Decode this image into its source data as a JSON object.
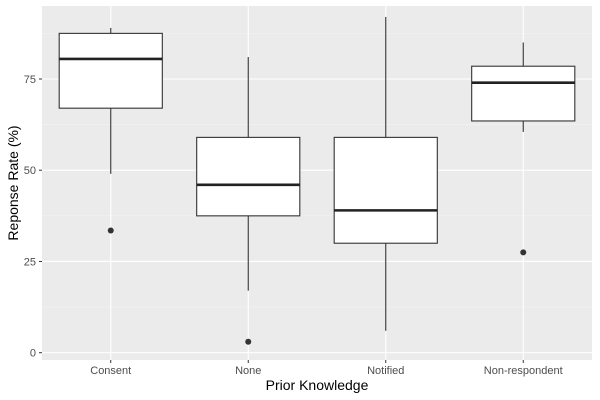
{
  "chart_data": {
    "type": "boxplot",
    "title": "",
    "xlabel": "Prior Knowledge",
    "ylabel": "Reponse Rate (%)",
    "ylim": [
      -2,
      95
    ],
    "yticks": [
      0,
      25,
      50,
      75
    ],
    "grid": true,
    "legend": "none",
    "colors": {
      "panel_bg": "#EBEBEB",
      "grid_major": "#FFFFFF",
      "grid_minor": "#F3F3F3",
      "box_fill": "#FFFFFF",
      "box_stroke": "#333333",
      "median": "#222222",
      "outlier": "#333333",
      "tick_text": "#4D4D4D",
      "axis_title": "#000000"
    },
    "categories": [
      "Consent",
      "None",
      "Notified",
      "Non-respondent"
    ],
    "boxes": [
      {
        "category": "Consent",
        "lower_whisker": 49,
        "q1": 67,
        "median": 80.5,
        "q3": 87.5,
        "upper_whisker": 89,
        "outliers": [
          33.5
        ]
      },
      {
        "category": "None",
        "lower_whisker": 17,
        "q1": 37.5,
        "median": 46,
        "q3": 59,
        "upper_whisker": 81,
        "outliers": [
          3
        ]
      },
      {
        "category": "Notified",
        "lower_whisker": 6,
        "q1": 30,
        "median": 39,
        "q3": 59,
        "upper_whisker": 92,
        "outliers": []
      },
      {
        "category": "Non-respondent",
        "lower_whisker": 60.5,
        "q1": 63.5,
        "median": 74,
        "q3": 78.5,
        "upper_whisker": 85,
        "outliers": [
          27.5
        ]
      }
    ]
  }
}
